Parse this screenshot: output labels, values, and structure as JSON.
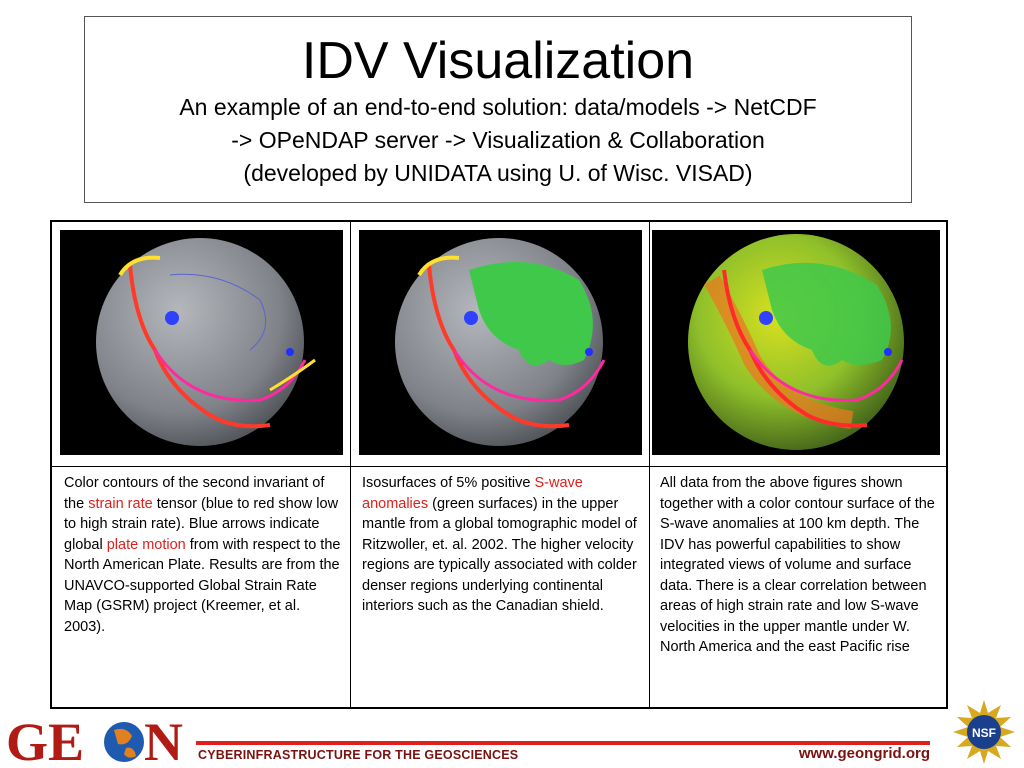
{
  "header": {
    "title": "IDV Visualization",
    "subtitle_lines": [
      "An example of an end-to-end solution: data/models -> NetCDF",
      "-> OPeNDAP server -> Visualization & Collaboration",
      "(developed by UNIDATA using U. of Wisc. VISAD)"
    ]
  },
  "panels": [
    {
      "caption_parts": [
        "Color contours of the second invariant of the ",
        "strain rate",
        " tensor (blue to red show low to high strain rate). Blue arrows indicate global ",
        "plate motion",
        " from with respect to the North American Plate. Results are from the UNAVCO-supported Global Strain Rate Map (GSRM) project (Kreemer, et al. 2003)."
      ]
    },
    {
      "caption_parts": [
        "Isosurfaces of 5% positive ",
        "S-wave anomalies",
        " (green surfaces) in the upper mantle from a global tomographic model of Ritzwoller, et. al. 2002. The higher velocity regions are typically associated with colder denser regions underlying continental interiors such as the Canadian shield."
      ]
    },
    {
      "caption_parts": [
        "All data from the above figures shown together with a color contour surface of the S-wave anomalies at 100 km depth. The IDV has powerful capabilities to show integrated views of volume and surface data. There is a clear correlation between areas of high strain rate and low S-wave velocities in the upper mantle under W. North America and the east Pacific rise"
      ]
    }
  ],
  "footer": {
    "left_text": "CYBERINFRASTRUCTURE FOR THE GEOSCIENCES",
    "right_text": "www.geongrid.org",
    "logo_text_1": "GE",
    "logo_text_2": "N",
    "nsf_text": "NSF"
  },
  "colors": {
    "accent_red": "#e0201c",
    "footer_text": "#7a1210",
    "globe_gray": "#8a8d92",
    "anomaly_green": "#3fc84a"
  }
}
